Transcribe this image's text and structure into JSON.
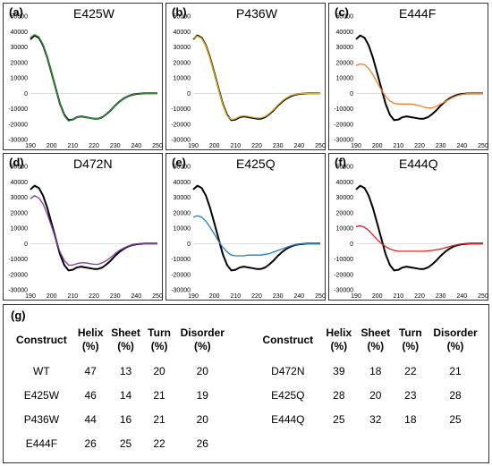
{
  "chart_data": [
    {
      "type": "line",
      "panel_label": "(a)",
      "title": "E425W",
      "x": [
        190,
        192,
        194,
        196,
        198,
        200,
        202,
        204,
        206,
        208,
        210,
        212,
        214,
        216,
        218,
        220,
        222,
        224,
        226,
        228,
        230,
        232,
        234,
        236,
        238,
        240,
        242,
        244,
        246,
        248,
        250
      ],
      "ylim": [
        -30000,
        50000
      ],
      "xlim": [
        190,
        250
      ],
      "series": [
        {
          "color": "#000000",
          "values": [
            35000,
            37500,
            36000,
            31000,
            23000,
            13000,
            3000,
            -7000,
            -14000,
            -17500,
            -17000,
            -15500,
            -15000,
            -15500,
            -16000,
            -16500,
            -16500,
            -15500,
            -13500,
            -11000,
            -8000,
            -5500,
            -3500,
            -2000,
            -1000,
            -500,
            -200,
            0,
            0,
            0,
            0
          ]
        },
        {
          "color": "#2e8b3a",
          "values": [
            36000,
            38000,
            36500,
            31500,
            23000,
            13000,
            3000,
            -7000,
            -14500,
            -18000,
            -17000,
            -15500,
            -15000,
            -15500,
            -16000,
            -16500,
            -16500,
            -15500,
            -13500,
            -11000,
            -8000,
            -5500,
            -3500,
            -2000,
            -1000,
            -500,
            -200,
            0,
            0,
            0,
            0
          ]
        }
      ]
    },
    {
      "type": "line",
      "panel_label": "(b)",
      "title": "P436W",
      "x": [
        190,
        192,
        194,
        196,
        198,
        200,
        202,
        204,
        206,
        208,
        210,
        212,
        214,
        216,
        218,
        220,
        222,
        224,
        226,
        228,
        230,
        232,
        234,
        236,
        238,
        240,
        242,
        244,
        246,
        248,
        250
      ],
      "ylim": [
        -30000,
        50000
      ],
      "xlim": [
        190,
        250
      ],
      "series": [
        {
          "color": "#000000",
          "values": [
            35000,
            37500,
            36000,
            31000,
            23000,
            13000,
            3000,
            -7000,
            -14000,
            -17500,
            -17000,
            -15500,
            -15000,
            -15500,
            -16000,
            -16500,
            -16500,
            -15500,
            -13500,
            -11000,
            -8000,
            -5500,
            -3500,
            -2000,
            -1000,
            -500,
            -200,
            0,
            0,
            0,
            0
          ]
        },
        {
          "color": "#e0b020",
          "values": [
            35500,
            37000,
            35500,
            30500,
            22500,
            12500,
            2500,
            -7500,
            -14500,
            -17000,
            -16500,
            -15000,
            -14500,
            -15000,
            -15500,
            -16000,
            -16000,
            -15000,
            -13000,
            -10500,
            -7500,
            -5000,
            -3000,
            -1500,
            -800,
            -400,
            -100,
            0,
            0,
            0,
            0
          ]
        }
      ]
    },
    {
      "type": "line",
      "panel_label": "(c)",
      "title": "E444F",
      "x": [
        190,
        192,
        194,
        196,
        198,
        200,
        202,
        204,
        206,
        208,
        210,
        212,
        214,
        216,
        218,
        220,
        222,
        224,
        226,
        228,
        230,
        232,
        234,
        236,
        238,
        240,
        242,
        244,
        246,
        248,
        250
      ],
      "ylim": [
        -30000,
        50000
      ],
      "xlim": [
        190,
        250
      ],
      "series": [
        {
          "color": "#000000",
          "values": [
            35000,
            37500,
            36000,
            31000,
            23000,
            13000,
            3000,
            -7000,
            -14000,
            -17500,
            -17000,
            -15500,
            -15000,
            -15500,
            -16000,
            -16500,
            -16500,
            -15500,
            -13500,
            -11000,
            -8000,
            -5500,
            -3500,
            -2000,
            -1000,
            -500,
            -200,
            0,
            0,
            0,
            0
          ]
        },
        {
          "color": "#f08030",
          "values": [
            18000,
            19000,
            18500,
            16000,
            12000,
            7000,
            2000,
            -2000,
            -5000,
            -6500,
            -7000,
            -7000,
            -7000,
            -7000,
            -7500,
            -8000,
            -9000,
            -9500,
            -9500,
            -8500,
            -7000,
            -5500,
            -4000,
            -2500,
            -1500,
            -800,
            -300,
            0,
            0,
            0,
            0
          ]
        }
      ]
    },
    {
      "type": "line",
      "panel_label": "(d)",
      "title": "D472N",
      "x": [
        190,
        192,
        194,
        196,
        198,
        200,
        202,
        204,
        206,
        208,
        210,
        212,
        214,
        216,
        218,
        220,
        222,
        224,
        226,
        228,
        230,
        232,
        234,
        236,
        238,
        240,
        242,
        244,
        246,
        248,
        250
      ],
      "ylim": [
        -30000,
        50000
      ],
      "xlim": [
        190,
        250
      ],
      "series": [
        {
          "color": "#000000",
          "values": [
            35000,
            37500,
            36000,
            31000,
            23000,
            13000,
            3000,
            -7000,
            -14000,
            -17500,
            -17000,
            -15500,
            -15000,
            -15500,
            -16000,
            -16500,
            -16500,
            -15500,
            -13500,
            -11000,
            -8000,
            -5500,
            -3500,
            -2000,
            -1000,
            -500,
            -200,
            0,
            0,
            0,
            0
          ]
        },
        {
          "color": "#8040a0",
          "values": [
            29000,
            31000,
            29500,
            25500,
            19000,
            11000,
            2500,
            -5500,
            -11000,
            -14000,
            -14000,
            -13000,
            -12500,
            -12500,
            -13000,
            -13500,
            -13500,
            -12500,
            -11000,
            -9000,
            -6500,
            -4500,
            -3000,
            -1700,
            -900,
            -400,
            -100,
            0,
            0,
            0,
            0
          ]
        }
      ]
    },
    {
      "type": "line",
      "panel_label": "(e)",
      "title": "E425Q",
      "x": [
        190,
        192,
        194,
        196,
        198,
        200,
        202,
        204,
        206,
        208,
        210,
        212,
        214,
        216,
        218,
        220,
        222,
        224,
        226,
        228,
        230,
        232,
        234,
        236,
        238,
        240,
        242,
        244,
        246,
        248,
        250
      ],
      "ylim": [
        -30000,
        50000
      ],
      "xlim": [
        190,
        250
      ],
      "series": [
        {
          "color": "#000000",
          "values": [
            35000,
            37500,
            36000,
            31000,
            23000,
            13000,
            3000,
            -7000,
            -14000,
            -17500,
            -17000,
            -15500,
            -15000,
            -15500,
            -16000,
            -16500,
            -16500,
            -15500,
            -13500,
            -11000,
            -8000,
            -5500,
            -3500,
            -2000,
            -1000,
            -500,
            -200,
            0,
            0,
            0,
            0
          ]
        },
        {
          "color": "#2080c0",
          "values": [
            17000,
            18000,
            17000,
            14500,
            10500,
            6000,
            1500,
            -2500,
            -5500,
            -7500,
            -8000,
            -8000,
            -8000,
            -7500,
            -7500,
            -7500,
            -7500,
            -7000,
            -6500,
            -5500,
            -4500,
            -3500,
            -2500,
            -1500,
            -900,
            -400,
            -100,
            0,
            0,
            0,
            0
          ]
        }
      ]
    },
    {
      "type": "line",
      "panel_label": "(f)",
      "title": "E444Q",
      "x": [
        190,
        192,
        194,
        196,
        198,
        200,
        202,
        204,
        206,
        208,
        210,
        212,
        214,
        216,
        218,
        220,
        222,
        224,
        226,
        228,
        230,
        232,
        234,
        236,
        238,
        240,
        242,
        244,
        246,
        248,
        250
      ],
      "ylim": [
        -30000,
        50000
      ],
      "xlim": [
        190,
        250
      ],
      "series": [
        {
          "color": "#000000",
          "values": [
            35000,
            37500,
            36000,
            31000,
            23000,
            13000,
            3000,
            -7000,
            -14000,
            -17500,
            -17000,
            -15500,
            -15000,
            -15500,
            -16000,
            -16500,
            -16500,
            -15500,
            -13500,
            -11000,
            -8000,
            -5500,
            -3500,
            -2000,
            -1000,
            -500,
            -200,
            0,
            0,
            0,
            0
          ]
        },
        {
          "color": "#e02020",
          "values": [
            11000,
            11500,
            10500,
            8500,
            5500,
            2500,
            0,
            -2000,
            -3500,
            -4500,
            -5000,
            -5000,
            -5000,
            -5000,
            -5000,
            -5000,
            -5000,
            -4800,
            -4500,
            -4000,
            -3500,
            -2800,
            -2000,
            -1300,
            -800,
            -400,
            -100,
            0,
            0,
            0,
            0
          ]
        }
      ]
    }
  ],
  "yticks": [
    "50000",
    "40000",
    "30000",
    "20000",
    "10000",
    "0",
    "-10000",
    "-20000",
    "-30000"
  ],
  "xticks": [
    "190",
    "200",
    "210",
    "220",
    "230",
    "240",
    "250"
  ],
  "table": {
    "label": "(g)",
    "headers": [
      "Construct",
      "Helix (%)",
      "Sheet (%)",
      "Turn (%)",
      "Disorder (%)"
    ],
    "header_lines": [
      [
        "Construct"
      ],
      [
        "Helix",
        "(%)"
      ],
      [
        "Sheet",
        "(%)"
      ],
      [
        "Turn",
        "(%)"
      ],
      [
        "Disorder",
        "(%)"
      ]
    ],
    "left_rows": [
      [
        "WT",
        "47",
        "13",
        "20",
        "20"
      ],
      [
        "E425W",
        "46",
        "14",
        "21",
        "19"
      ],
      [
        "P436W",
        "44",
        "16",
        "21",
        "20"
      ],
      [
        "E444F",
        "26",
        "25",
        "22",
        "26"
      ]
    ],
    "right_rows": [
      [
        "D472N",
        "39",
        "18",
        "22",
        "21"
      ],
      [
        "E425Q",
        "28",
        "20",
        "23",
        "28"
      ],
      [
        "E444Q",
        "25",
        "32",
        "18",
        "25"
      ]
    ]
  }
}
